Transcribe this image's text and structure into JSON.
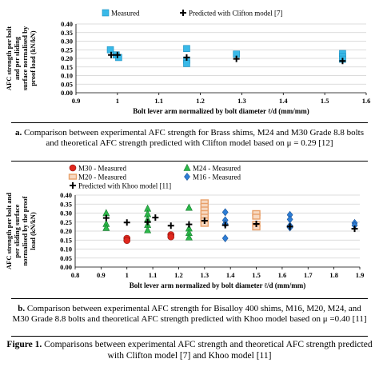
{
  "chart_data": [
    {
      "type": "scatter",
      "xlabel": "Bolt lever arm normalized by bolt diameter ℓ/d  (mm/mm)",
      "ylabel_lines": [
        "AFC strength per bolt",
        "and per sliding",
        "surface normalised by",
        "proof load (kN/kN)"
      ],
      "xlim": [
        0.9,
        1.6
      ],
      "ylim": [
        0,
        0.4
      ],
      "xticks": [
        "0.9",
        "1",
        "1.1",
        "1.2",
        "1.3",
        "1.4",
        "1.5",
        "1.6"
      ],
      "yticks": [
        "0.00",
        "0.05",
        "0.10",
        "0.15",
        "0.20",
        "0.25",
        "0.30",
        "0.35",
        "0.40"
      ],
      "grid": "horizontal",
      "legend": "top",
      "series": [
        {
          "name": "Measured",
          "marker": "square",
          "color": "#39b9e8",
          "points": [
            [
              0.983,
              0.25
            ],
            [
              0.997,
              0.22
            ],
            [
              1.003,
              0.205
            ],
            [
              1.167,
              0.257
            ],
            [
              1.167,
              0.19
            ],
            [
              1.167,
              0.17
            ],
            [
              1.287,
              0.225
            ],
            [
              1.543,
              0.228
            ],
            [
              1.543,
              0.21
            ],
            [
              1.543,
              0.195
            ]
          ]
        },
        {
          "name": "Predicted with Clifton model [7]",
          "marker": "plus",
          "color": "#000000",
          "points": [
            [
              0.985,
              0.22
            ],
            [
              1.0,
              0.22
            ],
            [
              1.167,
              0.205
            ],
            [
              1.287,
              0.197
            ],
            [
              1.543,
              0.185
            ]
          ]
        }
      ]
    },
    {
      "type": "scatter",
      "xlabel": "Bolt lever arm normalized by bolt diameter ℓ/d  (mm/mm)",
      "ylabel_lines": [
        "AFC strength per bolt and",
        "per sliding surface",
        "normalised by the proof",
        "load (kN/kN)"
      ],
      "xlim": [
        0.8,
        1.9
      ],
      "ylim": [
        0,
        0.4
      ],
      "xticks": [
        "0.8",
        "0.9",
        "1",
        "1.1",
        "1.2",
        "1.3",
        "1.4",
        "1.5",
        "1.6",
        "1.7",
        "1.8",
        "1.9"
      ],
      "yticks": [
        "0.00",
        "0.05",
        "0.10",
        "0.15",
        "0.20",
        "0.25",
        "0.30",
        "0.35",
        "0.40"
      ],
      "grid": "horizontal",
      "legend": "top-left",
      "series": [
        {
          "name": "M30 - Measured",
          "marker": "circle",
          "color": "#e0281e",
          "points": [
            [
              1.0,
              0.16
            ],
            [
              1.0,
              0.148
            ],
            [
              1.17,
              0.18
            ],
            [
              1.17,
              0.168
            ]
          ]
        },
        {
          "name": "M24 - Measured",
          "marker": "triangle",
          "color": "#2db84a",
          "points": [
            [
              0.92,
              0.3
            ],
            [
              0.92,
              0.24
            ],
            [
              0.92,
              0.218
            ],
            [
              1.08,
              0.325
            ],
            [
              1.08,
              0.295
            ],
            [
              1.08,
              0.265
            ],
            [
              1.08,
              0.235
            ],
            [
              1.08,
              0.205
            ],
            [
              1.24,
              0.33
            ],
            [
              1.24,
              0.215
            ],
            [
              1.24,
              0.19
            ],
            [
              1.24,
              0.165
            ]
          ]
        },
        {
          "name": "M20 - Measured",
          "marker": "square-open",
          "color": "#e8a06a",
          "points": [
            [
              1.3,
              0.36
            ],
            [
              1.3,
              0.34
            ],
            [
              1.3,
              0.32
            ],
            [
              1.3,
              0.3
            ],
            [
              1.3,
              0.28
            ],
            [
              1.3,
              0.26
            ],
            [
              1.3,
              0.24
            ],
            [
              1.5,
              0.3
            ],
            [
              1.5,
              0.28
            ],
            [
              1.5,
              0.24
            ],
            [
              1.5,
              0.22
            ]
          ]
        },
        {
          "name": "M16 - Measured",
          "marker": "diamond",
          "color": "#2e7ed6",
          "points": [
            [
              1.38,
              0.305
            ],
            [
              1.38,
              0.26
            ],
            [
              1.38,
              0.24
            ],
            [
              1.38,
              0.16
            ],
            [
              1.63,
              0.29
            ],
            [
              1.63,
              0.265
            ],
            [
              1.63,
              0.23
            ],
            [
              1.63,
              0.22
            ],
            [
              1.88,
              0.245
            ],
            [
              1.88,
              0.232
            ]
          ]
        },
        {
          "name": "Predicted with Khoo model [11]",
          "marker": "plus",
          "color": "#000000",
          "points": [
            [
              0.92,
              0.273
            ],
            [
              1.0,
              0.248
            ],
            [
              1.08,
              0.25
            ],
            [
              1.11,
              0.275
            ],
            [
              1.17,
              0.23
            ],
            [
              1.24,
              0.237
            ],
            [
              1.3,
              0.258
            ],
            [
              1.38,
              0.233
            ],
            [
              1.5,
              0.24
            ],
            [
              1.63,
              0.225
            ],
            [
              1.88,
              0.213
            ]
          ]
        }
      ]
    }
  ],
  "captions": {
    "a_label": "a.",
    "a_text": "Comparison between experimental AFC strength for Brass shims, M24 and M30 Grade 8.8 bolts and theoretical AFC strength predicted with Clifton model  based on μ = 0.29 [12]",
    "b_label": "b.",
    "b_text": "Comparison between experimental AFC strength for Bisalloy 400 shims, M16, M20, M24, and M30 Grade 8.8 bolts and theoretical AFC strength predicted with Khoo model based on μ =0.40 [11]",
    "figure_label": "Figure 1.",
    "figure_text": "Comparisons between experimental AFC strength and theoretical AFC strength predicted with Clifton model [7] and Khoo model [11]"
  }
}
